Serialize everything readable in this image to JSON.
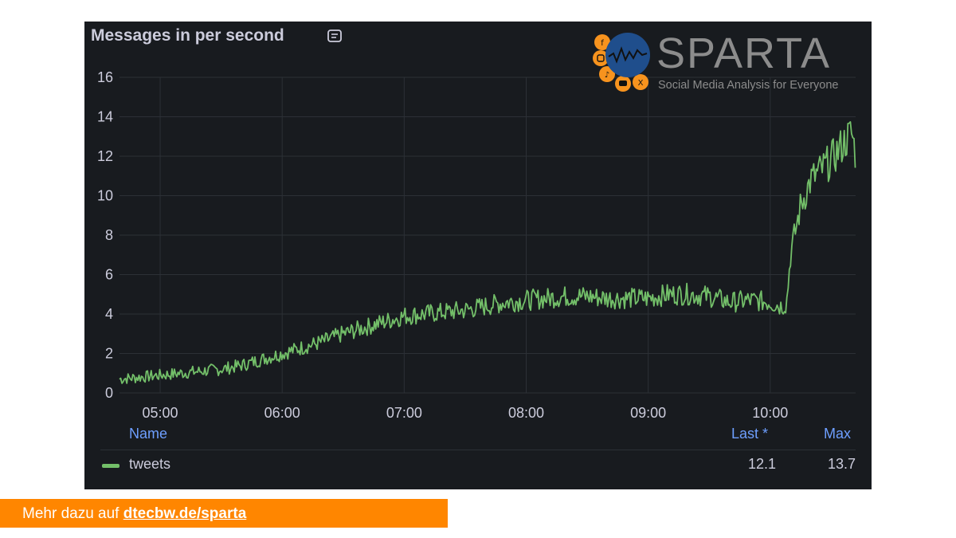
{
  "panel": {
    "title": "Messages in per second",
    "info_icon": "panel-info-icon"
  },
  "logo": {
    "wordmark": "SPARTA",
    "tagline": "Social Media Analysis for Everyone",
    "icons": [
      "facebook-icon",
      "instagram-icon",
      "tiktok-icon",
      "youtube-icon",
      "x-icon"
    ],
    "colors": {
      "circle": "#1f4e8c",
      "badges": "#f7931e",
      "text": "#8c8c8c"
    }
  },
  "legend": {
    "name_header": "Name",
    "last_header": "Last *",
    "max_header": "Max",
    "rows": [
      {
        "name": "tweets",
        "last": "12.1",
        "max": "13.7",
        "color": "#73bf69"
      }
    ]
  },
  "footer": {
    "prefix": "Mehr dazu auf ",
    "link": "dtecbw.de/sparta",
    "color": "#ff8600"
  },
  "chart_data": {
    "type": "line",
    "title": "Messages in per second",
    "xlabel": "",
    "ylabel": "",
    "x_ticks": [
      "05:00",
      "06:00",
      "07:00",
      "08:00",
      "09:00",
      "10:00"
    ],
    "y_ticks": [
      0,
      2,
      4,
      6,
      8,
      10,
      12,
      14,
      16
    ],
    "ylim": [
      0,
      16
    ],
    "xlim": [
      "04:40",
      "10:42"
    ],
    "grid": true,
    "legend": "bottom",
    "series": [
      {
        "name": "tweets",
        "color": "#73bf69",
        "x": [
          "04:40",
          "04:50",
          "05:00",
          "05:10",
          "05:20",
          "05:30",
          "05:40",
          "05:50",
          "06:00",
          "06:10",
          "06:20",
          "06:30",
          "06:40",
          "06:50",
          "07:00",
          "07:10",
          "07:20",
          "07:30",
          "07:40",
          "07:50",
          "08:00",
          "08:10",
          "08:20",
          "08:30",
          "08:40",
          "08:50",
          "09:00",
          "09:10",
          "09:20",
          "09:30",
          "09:40",
          "09:50",
          "10:00",
          "10:05",
          "10:08",
          "10:10",
          "10:15",
          "10:20",
          "10:25",
          "10:30",
          "10:35",
          "10:40",
          "10:42"
        ],
        "values": [
          0.7,
          0.8,
          0.9,
          1.0,
          1.1,
          1.2,
          1.4,
          1.7,
          2.0,
          2.3,
          2.6,
          3.0,
          3.3,
          3.6,
          3.9,
          4.0,
          4.1,
          4.2,
          4.4,
          4.6,
          4.7,
          4.8,
          4.9,
          4.9,
          4.8,
          4.8,
          4.8,
          5.0,
          5.0,
          4.9,
          4.6,
          4.7,
          4.6,
          4.4,
          4.5,
          7.0,
          9.5,
          10.8,
          11.3,
          11.8,
          12.5,
          13.2,
          12.1
        ]
      }
    ]
  }
}
